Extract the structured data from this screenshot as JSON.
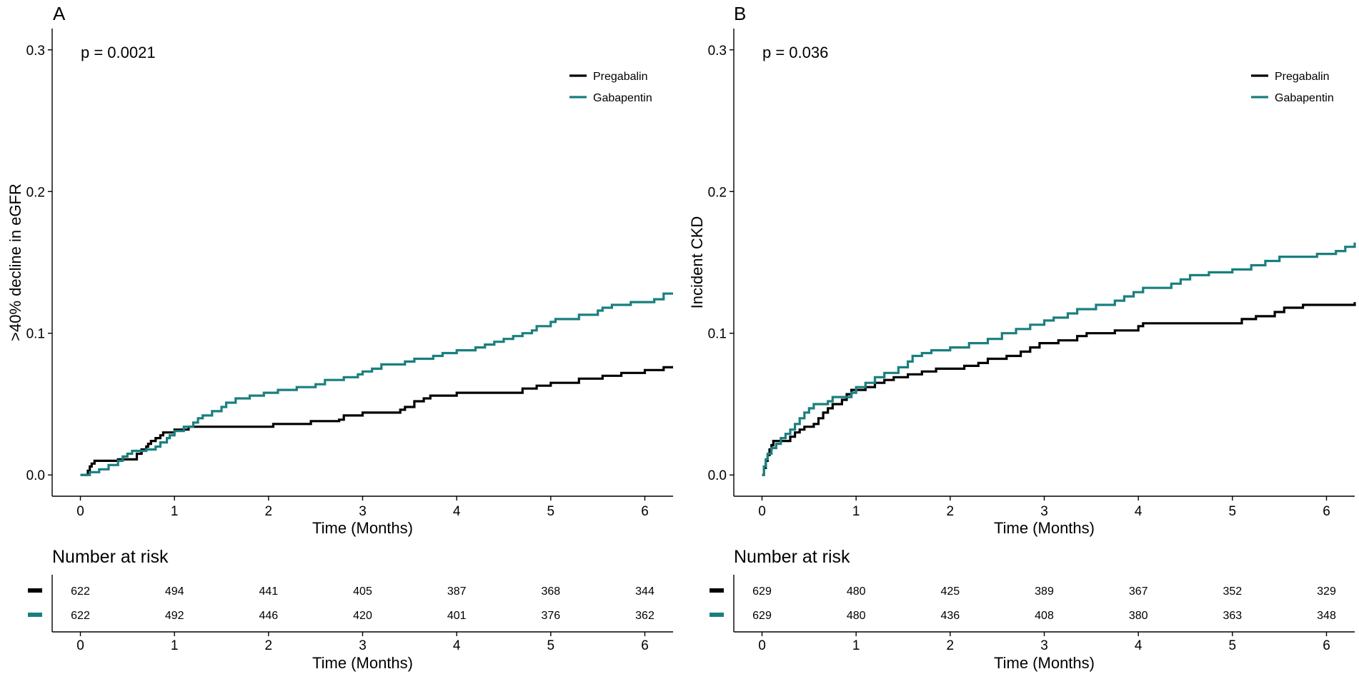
{
  "colors": {
    "pregabalin": "#000000",
    "gabapentin": "#1a7f7f"
  },
  "chart_data": [
    {
      "panel": "A",
      "type": "line",
      "step": true,
      "pvalue": "p = 0.0021",
      "xlabel": "Time (Months)",
      "ylabel": ">40% decline in eGFR",
      "xlim": [
        -0.3,
        6.3
      ],
      "ylim": [
        -0.015,
        0.315
      ],
      "xticks": [
        0,
        1,
        2,
        3,
        4,
        5,
        6
      ],
      "yticks": [
        0.0,
        0.1,
        0.2,
        0.3
      ],
      "ytick_labels": [
        "0.0",
        "0.1",
        "0.2",
        "0.3"
      ],
      "legend": [
        "Pregabalin",
        "Gabapentin"
      ],
      "legend_position": "top-right",
      "series": [
        {
          "name": "Pregabalin",
          "color_key": "pregabalin",
          "points": [
            [
              0,
              0
            ],
            [
              0.08,
              0.003
            ],
            [
              0.1,
              0.006
            ],
            [
              0.12,
              0.008
            ],
            [
              0.15,
              0.01
            ],
            [
              0.35,
              0.01
            ],
            [
              0.4,
              0.011
            ],
            [
              0.55,
              0.011
            ],
            [
              0.6,
              0.015
            ],
            [
              0.65,
              0.018
            ],
            [
              0.7,
              0.02
            ],
            [
              0.72,
              0.022
            ],
            [
              0.75,
              0.024
            ],
            [
              0.8,
              0.026
            ],
            [
              0.85,
              0.028
            ],
            [
              0.88,
              0.03
            ],
            [
              1.0,
              0.032
            ],
            [
              1.1,
              0.032
            ],
            [
              1.15,
              0.034
            ],
            [
              2.0,
              0.034
            ],
            [
              2.05,
              0.036
            ],
            [
              2.4,
              0.036
            ],
            [
              2.45,
              0.038
            ],
            [
              2.75,
              0.039
            ],
            [
              2.8,
              0.042
            ],
            [
              3.0,
              0.044
            ],
            [
              3.4,
              0.046
            ],
            [
              3.45,
              0.048
            ],
            [
              3.55,
              0.052
            ],
            [
              3.65,
              0.054
            ],
            [
              3.72,
              0.056
            ],
            [
              4.0,
              0.058
            ],
            [
              4.65,
              0.058
            ],
            [
              4.7,
              0.061
            ],
            [
              4.85,
              0.063
            ],
            [
              5.0,
              0.065
            ],
            [
              5.3,
              0.068
            ],
            [
              5.55,
              0.07
            ],
            [
              5.75,
              0.072
            ],
            [
              6.0,
              0.074
            ],
            [
              6.2,
              0.076
            ],
            [
              6.3,
              0.076
            ]
          ]
        },
        {
          "name": "Gabapentin",
          "color_key": "gabapentin",
          "points": [
            [
              0,
              0
            ],
            [
              0.1,
              0.002
            ],
            [
              0.2,
              0.004
            ],
            [
              0.3,
              0.007
            ],
            [
              0.4,
              0.01
            ],
            [
              0.45,
              0.013
            ],
            [
              0.5,
              0.015
            ],
            [
              0.55,
              0.017
            ],
            [
              0.65,
              0.017
            ],
            [
              0.7,
              0.018
            ],
            [
              0.8,
              0.02
            ],
            [
              0.85,
              0.023
            ],
            [
              0.92,
              0.026
            ],
            [
              0.95,
              0.028
            ],
            [
              1.0,
              0.031
            ],
            [
              1.1,
              0.034
            ],
            [
              1.2,
              0.037
            ],
            [
              1.25,
              0.04
            ],
            [
              1.3,
              0.042
            ],
            [
              1.4,
              0.045
            ],
            [
              1.5,
              0.048
            ],
            [
              1.55,
              0.051
            ],
            [
              1.65,
              0.054
            ],
            [
              1.8,
              0.056
            ],
            [
              1.95,
              0.058
            ],
            [
              2.1,
              0.06
            ],
            [
              2.3,
              0.062
            ],
            [
              2.5,
              0.064
            ],
            [
              2.6,
              0.067
            ],
            [
              2.8,
              0.069
            ],
            [
              2.95,
              0.071
            ],
            [
              3.0,
              0.073
            ],
            [
              3.1,
              0.075
            ],
            [
              3.2,
              0.078
            ],
            [
              3.45,
              0.08
            ],
            [
              3.55,
              0.082
            ],
            [
              3.75,
              0.084
            ],
            [
              3.85,
              0.086
            ],
            [
              4.0,
              0.088
            ],
            [
              4.2,
              0.09
            ],
            [
              4.3,
              0.092
            ],
            [
              4.4,
              0.094
            ],
            [
              4.5,
              0.096
            ],
            [
              4.6,
              0.098
            ],
            [
              4.7,
              0.1
            ],
            [
              4.8,
              0.102
            ],
            [
              4.85,
              0.105
            ],
            [
              5.0,
              0.108
            ],
            [
              5.05,
              0.11
            ],
            [
              5.3,
              0.113
            ],
            [
              5.5,
              0.116
            ],
            [
              5.55,
              0.118
            ],
            [
              5.65,
              0.12
            ],
            [
              5.85,
              0.122
            ],
            [
              6.1,
              0.124
            ],
            [
              6.2,
              0.128
            ],
            [
              6.3,
              0.128
            ]
          ]
        }
      ],
      "risk_table": {
        "title": "Number at risk",
        "xlabel": "Time (Months)",
        "times": [
          0,
          1,
          2,
          3,
          4,
          5,
          6
        ],
        "rows": [
          {
            "name": "Pregabalin",
            "color_key": "pregabalin",
            "values": [
              "622",
              "494",
              "441",
              "405",
              "387",
              "368",
              "344"
            ]
          },
          {
            "name": "Gabapentin",
            "color_key": "gabapentin",
            "values": [
              "622",
              "492",
              "446",
              "420",
              "401",
              "376",
              "362"
            ]
          }
        ]
      }
    },
    {
      "panel": "B",
      "type": "line",
      "step": true,
      "pvalue": "p = 0.036",
      "xlabel": "Time (Months)",
      "ylabel": "Incident CKD",
      "xlim": [
        -0.3,
        6.3
      ],
      "ylim": [
        -0.015,
        0.315
      ],
      "xticks": [
        0,
        1,
        2,
        3,
        4,
        5,
        6
      ],
      "yticks": [
        0.0,
        0.1,
        0.2,
        0.3
      ],
      "ytick_labels": [
        "0.0",
        "0.1",
        "0.2",
        "0.3"
      ],
      "legend": [
        "Pregabalin",
        "Gabapentin"
      ],
      "legend_position": "top-right",
      "series": [
        {
          "name": "Pregabalin",
          "color_key": "pregabalin",
          "points": [
            [
              0,
              0
            ],
            [
              0.02,
              0.005
            ],
            [
              0.04,
              0.01
            ],
            [
              0.06,
              0.014
            ],
            [
              0.08,
              0.018
            ],
            [
              0.1,
              0.021
            ],
            [
              0.12,
              0.024
            ],
            [
              0.25,
              0.024
            ],
            [
              0.3,
              0.027
            ],
            [
              0.35,
              0.03
            ],
            [
              0.4,
              0.032
            ],
            [
              0.45,
              0.034
            ],
            [
              0.55,
              0.036
            ],
            [
              0.6,
              0.04
            ],
            [
              0.65,
              0.044
            ],
            [
              0.7,
              0.047
            ],
            [
              0.75,
              0.05
            ],
            [
              0.85,
              0.053
            ],
            [
              0.9,
              0.057
            ],
            [
              0.95,
              0.06
            ],
            [
              1.1,
              0.062
            ],
            [
              1.2,
              0.065
            ],
            [
              1.3,
              0.067
            ],
            [
              1.4,
              0.069
            ],
            [
              1.55,
              0.071
            ],
            [
              1.7,
              0.073
            ],
            [
              1.85,
              0.075
            ],
            [
              2.15,
              0.077
            ],
            [
              2.3,
              0.079
            ],
            [
              2.4,
              0.082
            ],
            [
              2.6,
              0.084
            ],
            [
              2.75,
              0.087
            ],
            [
              2.85,
              0.09
            ],
            [
              2.95,
              0.093
            ],
            [
              3.15,
              0.095
            ],
            [
              3.35,
              0.098
            ],
            [
              3.45,
              0.1
            ],
            [
              3.75,
              0.102
            ],
            [
              4.0,
              0.105
            ],
            [
              4.05,
              0.107
            ],
            [
              5.0,
              0.107
            ],
            [
              5.1,
              0.11
            ],
            [
              5.25,
              0.112
            ],
            [
              5.45,
              0.115
            ],
            [
              5.55,
              0.118
            ],
            [
              5.75,
              0.12
            ],
            [
              6.3,
              0.122
            ]
          ]
        },
        {
          "name": "Gabapentin",
          "color_key": "gabapentin",
          "points": [
            [
              0,
              0
            ],
            [
              0.02,
              0.006
            ],
            [
              0.04,
              0.011
            ],
            [
              0.06,
              0.015
            ],
            [
              0.1,
              0.019
            ],
            [
              0.15,
              0.022
            ],
            [
              0.2,
              0.026
            ],
            [
              0.25,
              0.029
            ],
            [
              0.3,
              0.032
            ],
            [
              0.35,
              0.036
            ],
            [
              0.4,
              0.04
            ],
            [
              0.45,
              0.044
            ],
            [
              0.5,
              0.047
            ],
            [
              0.55,
              0.05
            ],
            [
              0.7,
              0.052
            ],
            [
              0.75,
              0.055
            ],
            [
              0.9,
              0.055
            ],
            [
              0.95,
              0.058
            ],
            [
              1.0,
              0.062
            ],
            [
              1.1,
              0.065
            ],
            [
              1.2,
              0.069
            ],
            [
              1.3,
              0.072
            ],
            [
              1.45,
              0.076
            ],
            [
              1.55,
              0.08
            ],
            [
              1.6,
              0.084
            ],
            [
              1.7,
              0.086
            ],
            [
              1.8,
              0.088
            ],
            [
              2.0,
              0.09
            ],
            [
              2.2,
              0.093
            ],
            [
              2.4,
              0.096
            ],
            [
              2.55,
              0.1
            ],
            [
              2.7,
              0.103
            ],
            [
              2.85,
              0.106
            ],
            [
              3.0,
              0.109
            ],
            [
              3.1,
              0.111
            ],
            [
              3.25,
              0.114
            ],
            [
              3.35,
              0.117
            ],
            [
              3.55,
              0.12
            ],
            [
              3.75,
              0.123
            ],
            [
              3.85,
              0.126
            ],
            [
              3.95,
              0.129
            ],
            [
              4.05,
              0.132
            ],
            [
              4.35,
              0.135
            ],
            [
              4.45,
              0.138
            ],
            [
              4.55,
              0.141
            ],
            [
              4.75,
              0.143
            ],
            [
              5.0,
              0.145
            ],
            [
              5.2,
              0.148
            ],
            [
              5.35,
              0.151
            ],
            [
              5.5,
              0.154
            ],
            [
              5.9,
              0.156
            ],
            [
              6.1,
              0.158
            ],
            [
              6.2,
              0.161
            ],
            [
              6.3,
              0.164
            ]
          ]
        }
      ],
      "risk_table": {
        "title": "Number at risk",
        "xlabel": "Time (Months)",
        "times": [
          0,
          1,
          2,
          3,
          4,
          5,
          6
        ],
        "rows": [
          {
            "name": "Pregabalin",
            "color_key": "pregabalin",
            "values": [
              "629",
              "480",
              "425",
              "389",
              "367",
              "352",
              "329"
            ]
          },
          {
            "name": "Gabapentin",
            "color_key": "gabapentin",
            "values": [
              "629",
              "480",
              "436",
              "408",
              "380",
              "363",
              "348"
            ]
          }
        ]
      }
    }
  ]
}
